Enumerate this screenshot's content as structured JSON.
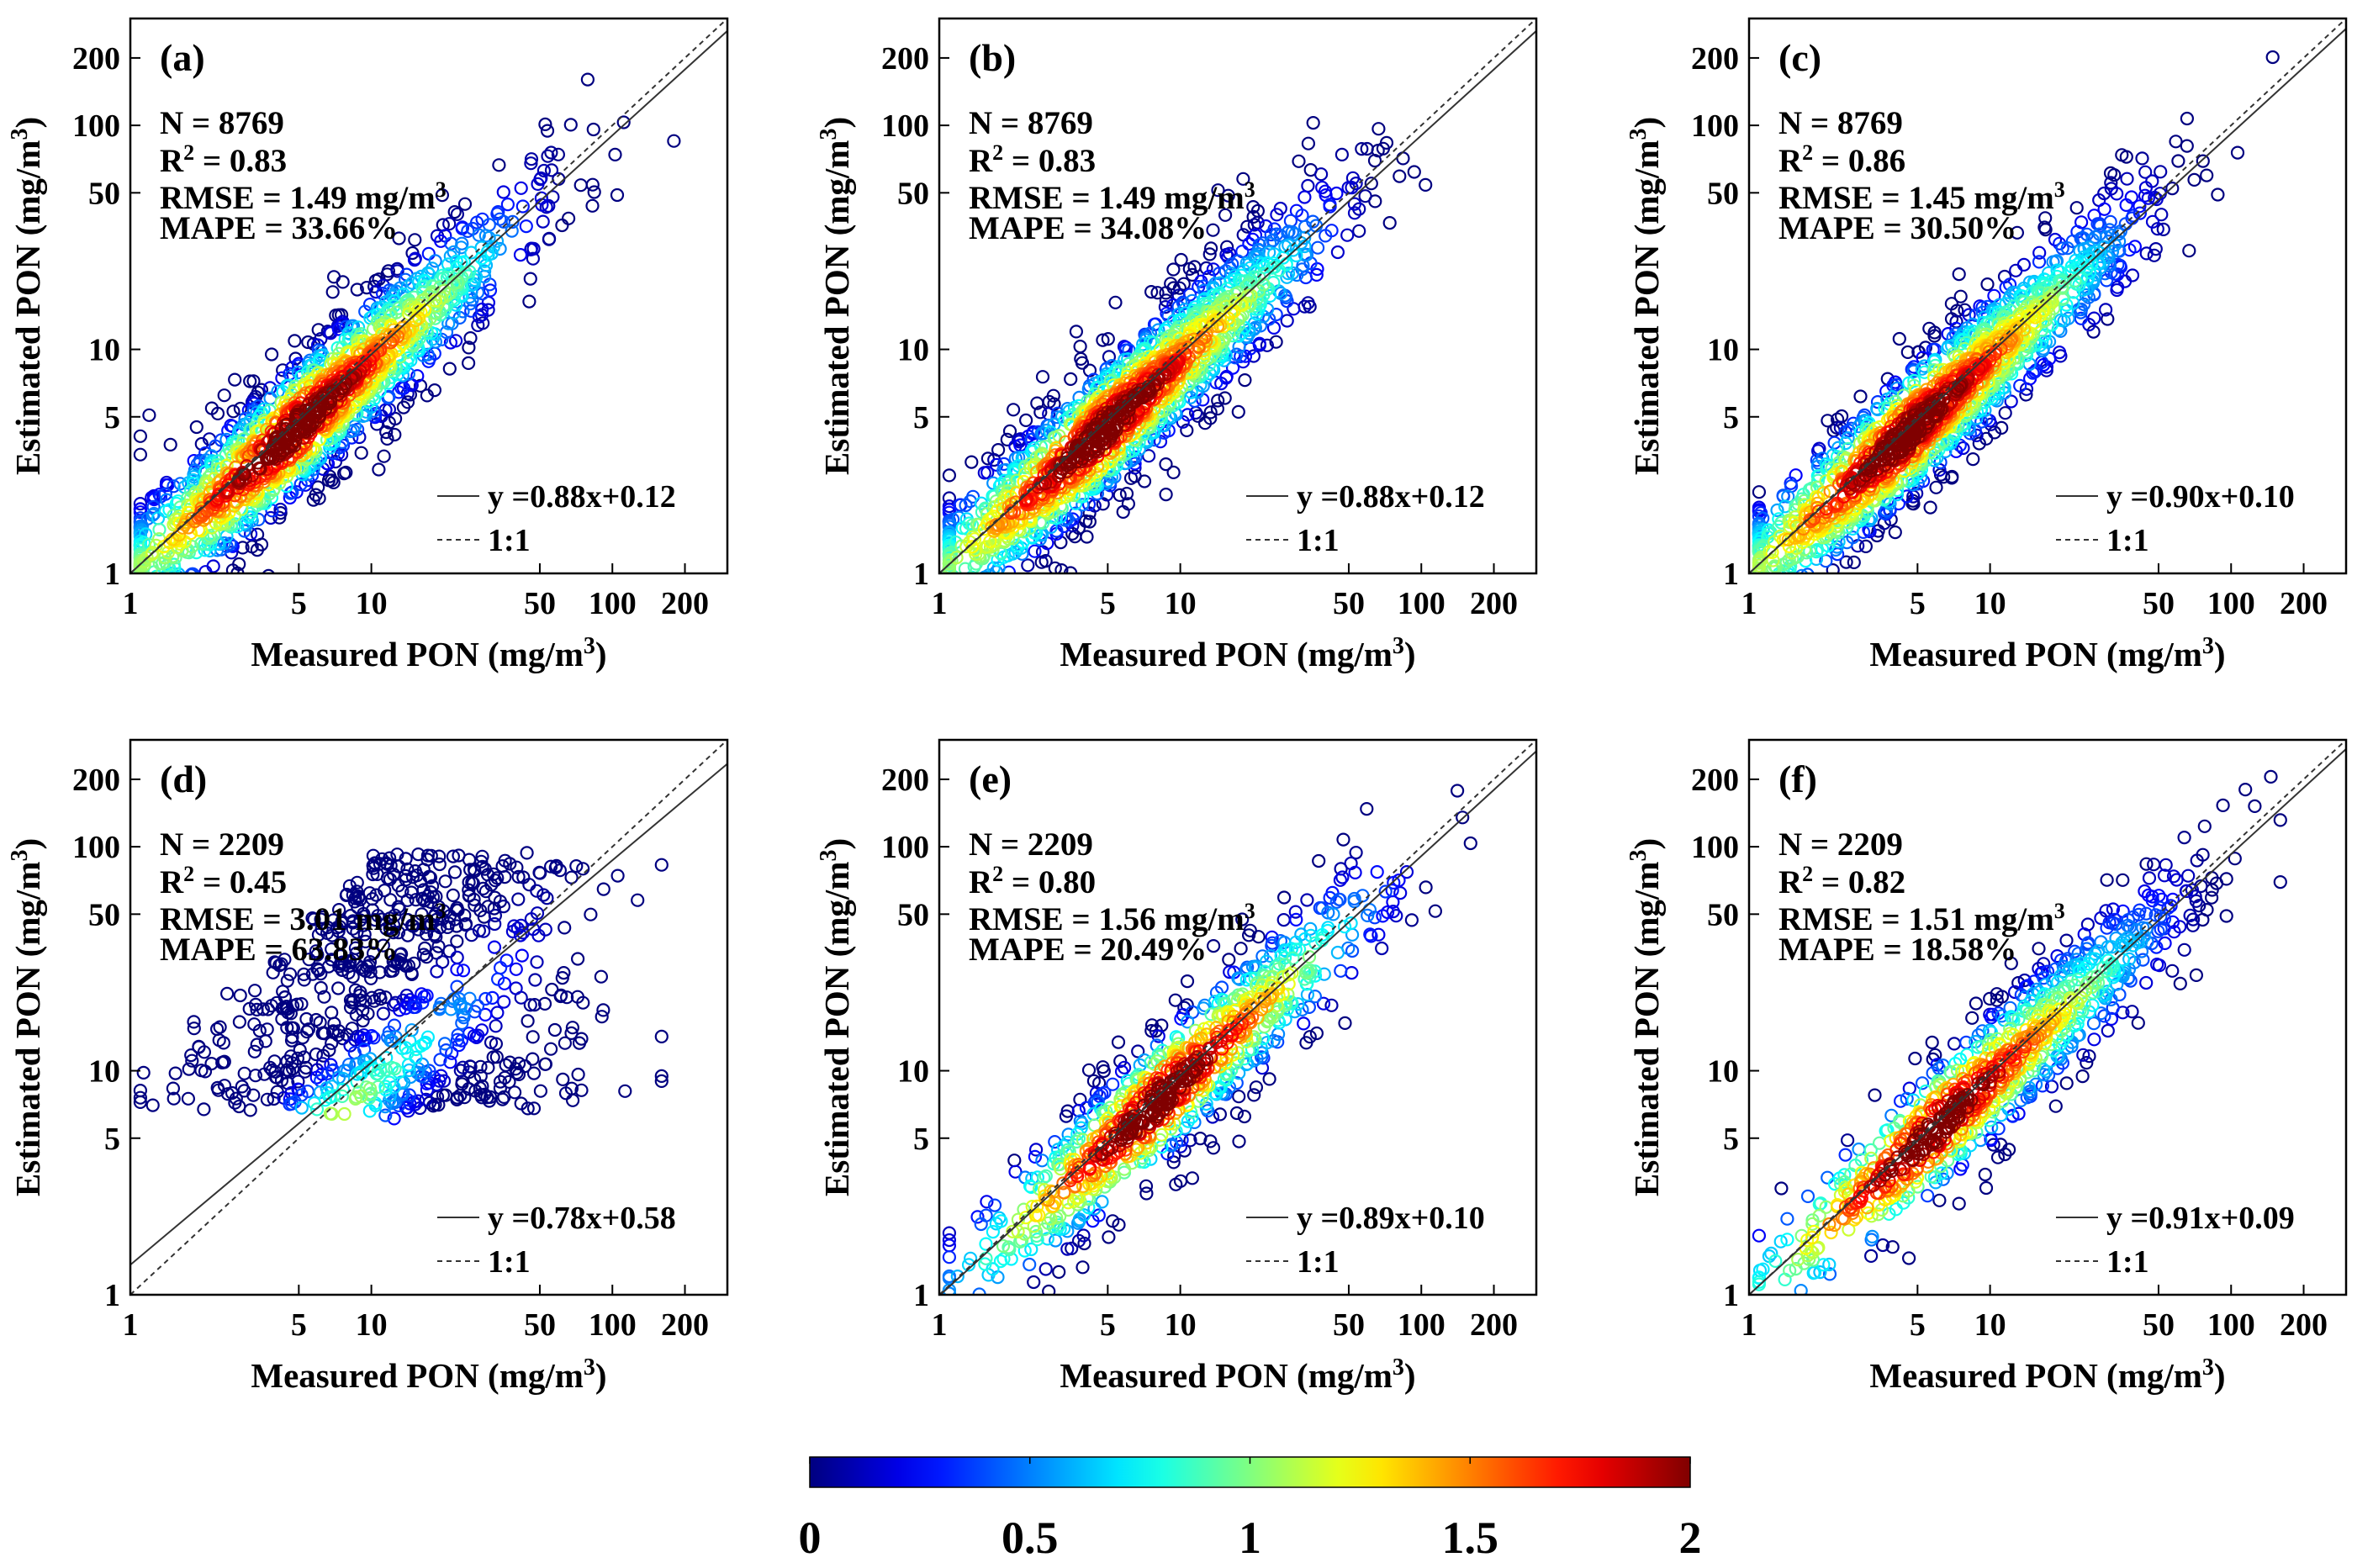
{
  "chart_data": [
    {
      "type": "scatter",
      "panel": "(a)",
      "xlabel": "Measured PON (mg/m",
      "ylabel": "Estimated PON (mg/m",
      "unit_superscript": "3",
      "xscale": "log",
      "yscale": "log",
      "xlim": [
        1,
        300
      ],
      "ylim": [
        1,
        300
      ],
      "xticks": [
        1,
        5,
        10,
        50,
        100,
        200
      ],
      "yticks": [
        1,
        5,
        10,
        50,
        100,
        200
      ],
      "stats": {
        "n": "N = 8769",
        "r2_prefix": "R",
        "r2_sup": "2",
        "r2_val": " = 0.83",
        "rmse": "RMSE = 1.49 mg/m",
        "rmse_sup": "3",
        "mape": "MAPE = 33.66%"
      },
      "fit": {
        "slope": 0.88,
        "intercept": 0.12,
        "label": "y =0.88x+0.12"
      },
      "identity_label": "1:1",
      "cloud": {
        "x_range": [
          1.1,
          180
        ],
        "x_center_log": 0.75,
        "spread": 0.17,
        "density_peak_x": 4.8,
        "n_points": 1500,
        "seed": 11
      }
    },
    {
      "type": "scatter",
      "panel": "(b)",
      "xlabel": "Measured PON (mg/m",
      "ylabel": "Estimated PON (mg/m",
      "unit_superscript": "3",
      "xscale": "log",
      "yscale": "log",
      "xlim": [
        1,
        300
      ],
      "ylim": [
        1,
        300
      ],
      "xticks": [
        1,
        5,
        10,
        50,
        100,
        200
      ],
      "yticks": [
        1,
        5,
        10,
        50,
        100,
        200
      ],
      "stats": {
        "n": "N = 8769",
        "r2_prefix": "R",
        "r2_sup": "2",
        "r2_val": " = 0.83",
        "rmse": "RMSE = 1.49 mg/m",
        "rmse_sup": "3",
        "mape": "MAPE = 34.08%"
      },
      "fit": {
        "slope": 0.88,
        "intercept": 0.12,
        "label": "y =0.88x+0.12"
      },
      "identity_label": "1:1",
      "cloud": {
        "x_range": [
          1.1,
          180
        ],
        "x_center_log": 0.75,
        "spread": 0.17,
        "density_peak_x": 4.8,
        "n_points": 1500,
        "seed": 23
      }
    },
    {
      "type": "scatter",
      "panel": "(c)",
      "xlabel": "Measured PON (mg/m",
      "ylabel": "Estimated PON (mg/m",
      "unit_superscript": "3",
      "xscale": "log",
      "yscale": "log",
      "xlim": [
        1,
        300
      ],
      "ylim": [
        1,
        300
      ],
      "xticks": [
        1,
        5,
        10,
        50,
        100,
        200
      ],
      "yticks": [
        1,
        5,
        10,
        50,
        100,
        200
      ],
      "stats": {
        "n": "N = 8769",
        "r2_prefix": "R",
        "r2_sup": "2",
        "r2_val": " = 0.86",
        "rmse": "RMSE = 1.45 mg/m",
        "rmse_sup": "3",
        "mape": "MAPE = 30.50%"
      },
      "fit": {
        "slope": 0.9,
        "intercept": 0.1,
        "label": "y =0.90x+0.10"
      },
      "identity_label": "1:1",
      "cloud": {
        "x_range": [
          1.1,
          180
        ],
        "x_center_log": 0.75,
        "spread": 0.15,
        "density_peak_x": 4.5,
        "n_points": 1500,
        "seed": 37
      }
    },
    {
      "type": "scatter",
      "panel": "(d)",
      "xlabel": "Measured PON (mg/m",
      "ylabel": "Estimated PON (mg/m",
      "unit_superscript": "3",
      "xscale": "log",
      "yscale": "log",
      "xlim": [
        1,
        300
      ],
      "ylim": [
        1,
        300
      ],
      "xticks": [
        1,
        5,
        10,
        50,
        100,
        200
      ],
      "yticks": [
        1,
        5,
        10,
        50,
        100,
        200
      ],
      "stats": {
        "n": "N = 2209",
        "r2_prefix": "R",
        "r2_sup": "2",
        "r2_val": " = 0.45",
        "rmse": "RMSE = 3.01 mg/m",
        "rmse_sup": "3",
        "mape": "MAPE = 63.83%"
      },
      "fit": {
        "slope": 0.78,
        "intercept": 0.58,
        "label": "y =0.78x+0.58"
      },
      "identity_label": "1:1",
      "cloud": {
        "x_range": [
          1.1,
          160
        ],
        "x_center_log": 1.0,
        "spread": 0.3,
        "density_peak_x": 5,
        "n_points": 900,
        "seed": 41,
        "banded": true,
        "y_bands": [
          7.5,
          10,
          14,
          20,
          30,
          45,
          60,
          80
        ]
      }
    },
    {
      "type": "scatter",
      "panel": "(e)",
      "xlabel": "Measured PON (mg/m",
      "ylabel": "Estimated PON (mg/m",
      "unit_superscript": "3",
      "xscale": "log",
      "yscale": "log",
      "xlim": [
        1,
        300
      ],
      "ylim": [
        1,
        300
      ],
      "xticks": [
        1,
        5,
        10,
        50,
        100,
        200
      ],
      "yticks": [
        1,
        5,
        10,
        50,
        100,
        200
      ],
      "stats": {
        "n": "N = 2209",
        "r2_prefix": "R",
        "r2_sup": "2",
        "r2_val": " = 0.80",
        "rmse": "RMSE = 1.56 mg/m",
        "rmse_sup": "3",
        "mape": "MAPE = 20.49%"
      },
      "fit": {
        "slope": 0.89,
        "intercept": 0.1,
        "label": "y =0.89x+0.10"
      },
      "identity_label": "1:1",
      "cloud": {
        "x_range": [
          1.1,
          160
        ],
        "x_center_log": 1.0,
        "spread": 0.17,
        "density_peak_x": 8,
        "n_points": 900,
        "seed": 53
      }
    },
    {
      "type": "scatter",
      "panel": "(f)",
      "xlabel": "Measured PON (mg/m",
      "ylabel": "Estimated PON (mg/m",
      "unit_superscript": "3",
      "xscale": "log",
      "yscale": "log",
      "xlim": [
        1,
        300
      ],
      "ylim": [
        1,
        300
      ],
      "xticks": [
        1,
        5,
        10,
        50,
        100,
        200
      ],
      "yticks": [
        1,
        5,
        10,
        50,
        100,
        200
      ],
      "stats": {
        "n": "N = 2209",
        "r2_prefix": "R",
        "r2_sup": "2",
        "r2_val": " = 0.82",
        "rmse": "RMSE = 1.51 mg/m",
        "rmse_sup": "3",
        "mape": "MAPE = 18.58%"
      },
      "fit": {
        "slope": 0.91,
        "intercept": 0.09,
        "label": "y =0.91x+0.09"
      },
      "identity_label": "1:1",
      "cloud": {
        "x_range": [
          1.1,
          160
        ],
        "x_center_log": 1.0,
        "spread": 0.15,
        "density_peak_x": 6,
        "n_points": 900,
        "seed": 67
      }
    }
  ],
  "colorbar": {
    "colormap": "jet",
    "range": [
      0,
      2
    ],
    "ticks": [
      "0",
      "0.5",
      "1",
      "1.5",
      "2"
    ]
  },
  "colors": {
    "fit_line": "#333333",
    "identity_line": "#333333",
    "axis": "#000000"
  }
}
